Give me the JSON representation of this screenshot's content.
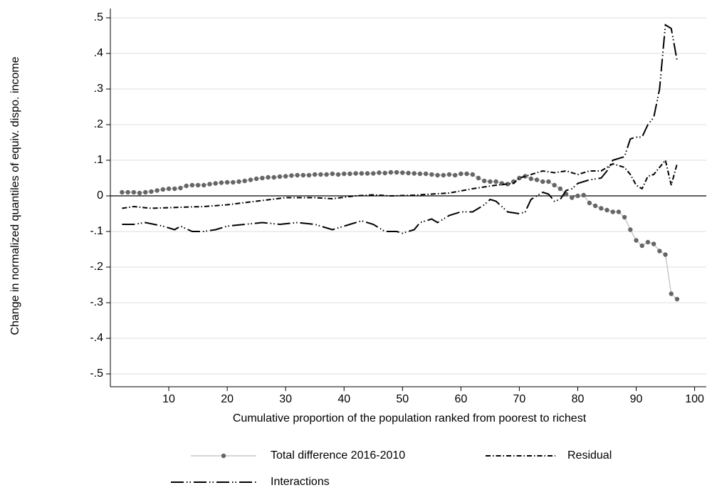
{
  "chart_data": {
    "type": "line",
    "xlabel": "Cumulative proportion of the population ranked from poorest to richest",
    "ylabel": "Change in normalized quantiles of equiv. dispo. income",
    "xlim": [
      0,
      102
    ],
    "ylim": [
      -0.536,
      0.526
    ],
    "xticks": [
      10,
      20,
      30,
      40,
      50,
      60,
      70,
      80,
      90,
      100
    ],
    "yticks": [
      {
        "value": 0.5,
        "label": ".5"
      },
      {
        "value": 0.4,
        "label": ".4"
      },
      {
        "value": 0.3,
        "label": ".3"
      },
      {
        "value": 0.2,
        "label": ".2"
      },
      {
        "value": 0.1,
        "label": ".1"
      },
      0,
      {
        "value": -0.1,
        "label": "-.1"
      },
      {
        "value": -0.2,
        "label": "-.2"
      },
      {
        "value": -0.3,
        "label": "-.3"
      },
      {
        "value": -0.4,
        "label": "-.4"
      },
      {
        "value": -0.5,
        "label": "-.5"
      }
    ],
    "grid": true,
    "legend": "bottom",
    "series": [
      {
        "name": "Total difference 2016-2010",
        "color": "#c8c8c8",
        "marker_color": "#666666",
        "dash": "solid",
        "x": [
          2,
          3,
          4,
          5,
          6,
          7,
          8,
          9,
          10,
          11,
          12,
          13,
          14,
          15,
          16,
          17,
          18,
          19,
          20,
          21,
          22,
          23,
          24,
          25,
          26,
          27,
          28,
          29,
          30,
          31,
          32,
          33,
          34,
          35,
          36,
          37,
          38,
          39,
          40,
          41,
          42,
          43,
          44,
          45,
          46,
          47,
          48,
          49,
          50,
          51,
          52,
          53,
          54,
          55,
          56,
          57,
          58,
          59,
          60,
          61,
          62,
          63,
          64,
          65,
          66,
          67,
          68,
          69,
          70,
          71,
          72,
          73,
          74,
          75,
          76,
          77,
          78,
          79,
          80,
          81,
          82,
          83,
          84,
          85,
          86,
          87,
          88,
          89,
          90,
          91,
          92,
          93,
          94,
          95,
          96,
          97
        ],
        "values": [
          0.01,
          0.01,
          0.01,
          0.008,
          0.01,
          0.012,
          0.015,
          0.018,
          0.02,
          0.02,
          0.022,
          0.028,
          0.03,
          0.03,
          0.03,
          0.033,
          0.035,
          0.037,
          0.038,
          0.038,
          0.04,
          0.042,
          0.045,
          0.048,
          0.05,
          0.052,
          0.052,
          0.054,
          0.055,
          0.057,
          0.058,
          0.058,
          0.058,
          0.06,
          0.06,
          0.06,
          0.062,
          0.06,
          0.062,
          0.062,
          0.063,
          0.063,
          0.063,
          0.063,
          0.065,
          0.064,
          0.066,
          0.066,
          0.065,
          0.064,
          0.063,
          0.062,
          0.062,
          0.06,
          0.058,
          0.058,
          0.06,
          0.058,
          0.062,
          0.062,
          0.06,
          0.05,
          0.042,
          0.04,
          0.04,
          0.035,
          0.033,
          0.04,
          0.05,
          0.055,
          0.048,
          0.045,
          0.04,
          0.04,
          0.03,
          0.02,
          0.005,
          -0.005,
          0,
          0.002,
          -0.02,
          -0.028,
          -0.035,
          -0.04,
          -0.045,
          -0.045,
          -0.06,
          -0.095,
          -0.125,
          -0.14,
          -0.13,
          -0.135,
          -0.155,
          -0.165,
          -0.275,
          -0.29
        ]
      },
      {
        "name": "Residual",
        "color": "#000000",
        "dash": "dashdot",
        "x": [
          2,
          4,
          7,
          12,
          16,
          20,
          25,
          30,
          35,
          38,
          42,
          45,
          48,
          52,
          55,
          58,
          62,
          66,
          69,
          70,
          72,
          74,
          76,
          78,
          80,
          82,
          84,
          86,
          88,
          89,
          90,
          91,
          92,
          93,
          94,
          95,
          96,
          97
        ],
        "values": [
          -0.035,
          -0.03,
          -0.035,
          -0.032,
          -0.03,
          -0.025,
          -0.015,
          -0.005,
          -0.005,
          -0.008,
          0,
          0.003,
          0,
          0.002,
          0.005,
          0.008,
          0.02,
          0.03,
          0.035,
          0.05,
          0.06,
          0.07,
          0.065,
          0.07,
          0.06,
          0.07,
          0.07,
          0.09,
          0.08,
          0.06,
          0.03,
          0.02,
          0.055,
          0.06,
          0.08,
          0.1,
          0.03,
          0.09
        ]
      },
      {
        "name": "Interactions",
        "color": "#000000",
        "dash": "longdashdotdot",
        "x": [
          2,
          4,
          6,
          9,
          11,
          12,
          14,
          16,
          18,
          20,
          23,
          26,
          29,
          32,
          35,
          38,
          41,
          43,
          45,
          47,
          49,
          50,
          52,
          53,
          55,
          56,
          58,
          60,
          62,
          64,
          65,
          66,
          67,
          68,
          70,
          71,
          72,
          74,
          75,
          76,
          77,
          78,
          79,
          80,
          82,
          84,
          85,
          86,
          88,
          89,
          90,
          91,
          92,
          93,
          94,
          95,
          96,
          97
        ],
        "values": [
          -0.08,
          -0.08,
          -0.075,
          -0.085,
          -0.095,
          -0.085,
          -0.1,
          -0.1,
          -0.095,
          -0.085,
          -0.08,
          -0.075,
          -0.08,
          -0.075,
          -0.08,
          -0.095,
          -0.08,
          -0.07,
          -0.08,
          -0.1,
          -0.1,
          -0.105,
          -0.095,
          -0.075,
          -0.065,
          -0.075,
          -0.055,
          -0.045,
          -0.045,
          -0.025,
          -0.01,
          -0.015,
          -0.03,
          -0.045,
          -0.05,
          -0.045,
          -0.01,
          0.01,
          0.005,
          -0.015,
          -0.01,
          0.015,
          0.02,
          0.035,
          0.045,
          0.05,
          0.07,
          0.1,
          0.11,
          0.16,
          0.165,
          0.165,
          0.2,
          0.22,
          0.3,
          0.48,
          0.47,
          0.38
        ]
      }
    ]
  }
}
